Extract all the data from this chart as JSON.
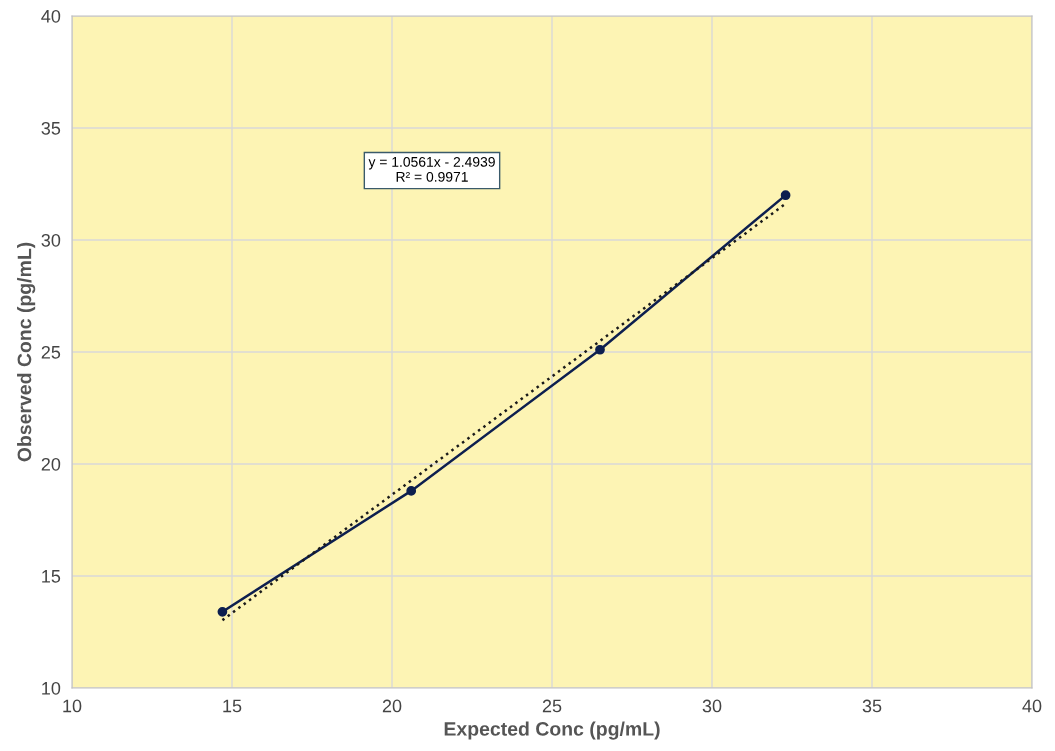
{
  "chart_data": {
    "type": "line",
    "xlabel": "Expected Conc (pg/mL)",
    "ylabel": "Observed Conc (pg/mL)",
    "xlim": [
      10,
      40
    ],
    "xticks": [
      10,
      15,
      20,
      25,
      30,
      35,
      40
    ],
    "ylim": [
      10,
      40
    ],
    "yticks": [
      10,
      15,
      20,
      25,
      30,
      35,
      40
    ],
    "grid": true,
    "series": [
      {
        "color": "#0d1f4f",
        "x": [
          14.7,
          20.6,
          26.5,
          32.3
        ],
        "values": [
          13.4,
          18.8,
          25.1,
          32.0
        ],
        "marker": "circle",
        "line_style": "solid"
      },
      {
        "color": "#1a1a1a",
        "x": [
          14.7,
          32.3
        ],
        "values": [
          13.03,
          31.62
        ],
        "marker": "none",
        "line_style": "dotted"
      }
    ],
    "annotations": [
      "y = 1.0561x - 2.4939\nR² = 0.9971"
    ]
  }
}
